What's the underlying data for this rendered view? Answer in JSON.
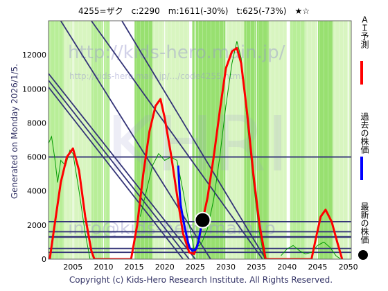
{
  "header": {
    "title": "4255=ザク　c:2290　m:1611(-30%)　t:625(-73%)　★☆"
  },
  "generated_label": "Generated on Monday 2026/1/5.",
  "copyright": "Copyright (c) Kids-Hero Research Institute. All Rights Reserved.",
  "watermarks": {
    "url_top": "http://kids-hero.main.jp/",
    "url_sub": "http://kids-hero.main.jp/.../code4255.html",
    "big": "KHRI",
    "email": "info@kids-hero.main.jp"
  },
  "legend": {
    "ai_label": "ＡＩ予測",
    "past_label": "過去の株価",
    "latest_label": "最新の株価",
    "ai_color": "#ff0000",
    "past_color": "#0000ff",
    "latest_color": "#000000"
  },
  "colors": {
    "band_light": "#d8f5c0",
    "band_mid": "#b8ee98",
    "band_strong": "#98e070",
    "trend_line": "#333377",
    "ai_line": "#ff0000",
    "past_line": "#0000ff",
    "thin_green": "#009900",
    "axis_text": "#000000"
  },
  "chart_data": {
    "type": "line",
    "xlim": [
      2001,
      2050.5
    ],
    "ylim": [
      0,
      14000
    ],
    "x_ticks": [
      2005,
      2010,
      2015,
      2020,
      2025,
      2030,
      2035,
      2040,
      2045,
      2050
    ],
    "y_ticks": [
      0,
      2000,
      4000,
      6000,
      8000,
      10000,
      12000
    ],
    "current": {
      "x": 2026.2,
      "y": 2290
    },
    "horizontal_lines": [
      6000,
      2200,
      1611,
      1300,
      625,
      400
    ],
    "green_bands": [
      [
        2001,
        2003.5,
        "band_mid"
      ],
      [
        2003.5,
        2008,
        "band_light"
      ],
      [
        2008,
        2011,
        "band_mid"
      ],
      [
        2015,
        2018,
        "band_strong"
      ],
      [
        2018,
        2024,
        "band_light"
      ],
      [
        2024.5,
        2030,
        "band_strong"
      ],
      [
        2030,
        2033,
        "band_light"
      ],
      [
        2033,
        2037,
        "band_strong"
      ],
      [
        2037,
        2040,
        "band_light"
      ],
      [
        2040.5,
        2043,
        "band_mid"
      ],
      [
        2043,
        2045,
        "band_light"
      ],
      [
        2045,
        2047.5,
        "band_strong"
      ],
      [
        2047.5,
        2050.5,
        "band_light"
      ]
    ],
    "trend_lines": [
      [
        [
          2003,
          14000
        ],
        [
          2027.5,
          0
        ]
      ],
      [
        [
          2001,
          10900
        ],
        [
          2025,
          0
        ]
      ],
      [
        [
          2001,
          10500
        ],
        [
          2024,
          0
        ]
      ],
      [
        [
          2001,
          10100
        ],
        [
          2023,
          0
        ]
      ],
      [
        [
          2008,
          14000
        ],
        [
          2036,
          0
        ]
      ],
      [
        [
          2013,
          14000
        ],
        [
          2036.5,
          0
        ]
      ]
    ],
    "series": [
      {
        "name": "ＡＩ予測",
        "color": "ai_line",
        "points": [
          [
            2001.2,
            0
          ],
          [
            2002,
            2000
          ],
          [
            2003,
            4500
          ],
          [
            2004,
            6000
          ],
          [
            2005,
            6500
          ],
          [
            2006,
            5200
          ],
          [
            2007,
            2500
          ],
          [
            2008,
            500
          ],
          [
            2008.5,
            0
          ],
          [
            2014.5,
            0
          ],
          [
            2015.5,
            2000
          ],
          [
            2016.5,
            5000
          ],
          [
            2017.5,
            7500
          ],
          [
            2018.5,
            9000
          ],
          [
            2019.3,
            9400
          ],
          [
            2020,
            8300
          ],
          [
            2021,
            6200
          ],
          [
            2022,
            3800
          ],
          [
            2023,
            1500
          ],
          [
            2024,
            400
          ],
          [
            2024.8,
            300
          ],
          [
            2025.5,
            1000
          ],
          [
            2026.2,
            2290
          ],
          [
            2027,
            3600
          ],
          [
            2028,
            6000
          ],
          [
            2029,
            8700
          ],
          [
            2030,
            11200
          ],
          [
            2031,
            12200
          ],
          [
            2031.8,
            12400
          ],
          [
            2032.5,
            11500
          ],
          [
            2033.5,
            8500
          ],
          [
            2034.5,
            5000
          ],
          [
            2035.5,
            2000
          ],
          [
            2036.5,
            0
          ],
          [
            2044,
            0
          ],
          [
            2044.7,
            1200
          ],
          [
            2045.5,
            2500
          ],
          [
            2046.3,
            2900
          ],
          [
            2047.3,
            2200
          ],
          [
            2048.2,
            1000
          ],
          [
            2049,
            0
          ]
        ]
      },
      {
        "name": "過去の株価",
        "color": "past_line",
        "points": [
          [
            2022.2,
            5500
          ],
          [
            2022.4,
            4200
          ],
          [
            2022.6,
            3200
          ],
          [
            2022.9,
            2600
          ],
          [
            2023.2,
            2000
          ],
          [
            2023.5,
            1500
          ],
          [
            2023.8,
            1000
          ],
          [
            2024.1,
            650
          ],
          [
            2024.5,
            500
          ],
          [
            2025,
            550
          ],
          [
            2025.3,
            750
          ],
          [
            2025.6,
            1200
          ],
          [
            2025.9,
            1800
          ],
          [
            2026.2,
            2290
          ]
        ]
      }
    ],
    "thin_green_series": [
      [
        [
          2001,
          6800
        ],
        [
          2001.5,
          7200
        ],
        [
          2002,
          6000
        ],
        [
          2002.5,
          4500
        ],
        [
          2003,
          5800
        ],
        [
          2003.8,
          5500
        ],
        [
          2004.5,
          6400
        ],
        [
          2005,
          6200
        ],
        [
          2006,
          4000
        ],
        [
          2007,
          1500
        ],
        [
          2007.8,
          0
        ]
      ],
      [
        [
          2016,
          2500
        ],
        [
          2017,
          4000
        ],
        [
          2018,
          5500
        ],
        [
          2019,
          6200
        ],
        [
          2020,
          5800
        ],
        [
          2021,
          6000
        ],
        [
          2022,
          5800
        ],
        [
          2023,
          4000
        ],
        [
          2024,
          2000
        ],
        [
          2024.8,
          600
        ],
        [
          2026,
          900
        ],
        [
          2027,
          1800
        ],
        [
          2028,
          3500
        ],
        [
          2029,
          6000
        ],
        [
          2030,
          9000
        ],
        [
          2031,
          11500
        ],
        [
          2031.8,
          12800
        ],
        [
          2032.5,
          11800
        ],
        [
          2033.5,
          8000
        ],
        [
          2034.5,
          4500
        ],
        [
          2035.5,
          1500
        ],
        [
          2036.3,
          0
        ]
      ],
      [
        [
          2039,
          200
        ],
        [
          2040,
          600
        ],
        [
          2041,
          800
        ],
        [
          2042,
          500
        ],
        [
          2043,
          300
        ],
        [
          2044,
          400
        ],
        [
          2045,
          800
        ],
        [
          2046,
          1000
        ],
        [
          2047,
          700
        ],
        [
          2048,
          200
        ],
        [
          2048.8,
          0
        ]
      ]
    ]
  }
}
